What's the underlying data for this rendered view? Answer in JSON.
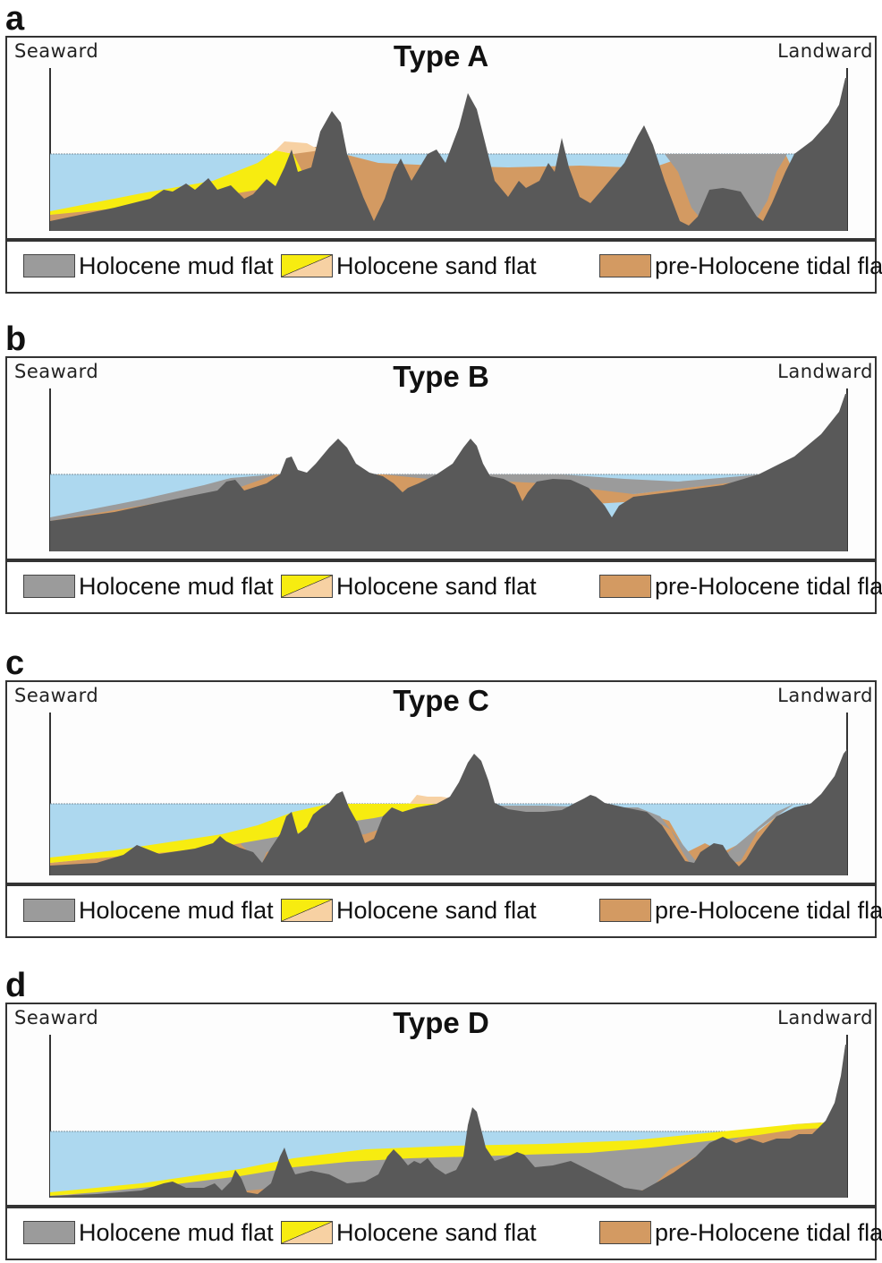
{
  "labels": {
    "seaward": "Seaward",
    "landward": "Landward"
  },
  "legend": {
    "mud": "Holocene mud flat",
    "sand": "Holocene sand flat",
    "pre": "pre-Holocene tidal flat"
  },
  "colors": {
    "water": "#add8ef",
    "bedrock": "#595959",
    "mud_flat": "#9b9b9b",
    "sand_flat": "#f7ec10",
    "sand_flat_light": "#f7d1a3",
    "pre_holocene": "#d39a62"
  },
  "panels": [
    {
      "letter": "a",
      "title": "Type A"
    },
    {
      "letter": "b",
      "title": "Type B"
    },
    {
      "letter": "c",
      "title": "Type C"
    },
    {
      "letter": "d",
      "title": "Type D"
    }
  ]
}
